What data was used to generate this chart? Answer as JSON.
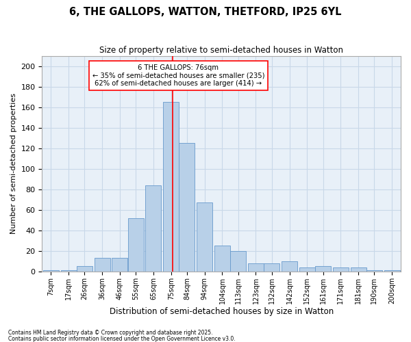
{
  "title": "6, THE GALLOPS, WATTON, THETFORD, IP25 6YL",
  "subtitle": "Size of property relative to semi-detached houses in Watton",
  "xlabel": "Distribution of semi-detached houses by size in Watton",
  "ylabel": "Number of semi-detached properties",
  "categories": [
    "7sqm",
    "17sqm",
    "26sqm",
    "36sqm",
    "46sqm",
    "55sqm",
    "65sqm",
    "75sqm",
    "84sqm",
    "94sqm",
    "104sqm",
    "113sqm",
    "123sqm",
    "132sqm",
    "142sqm",
    "152sqm",
    "161sqm",
    "171sqm",
    "181sqm",
    "190sqm",
    "200sqm"
  ],
  "bar_heights": [
    1,
    1,
    5,
    13,
    13,
    52,
    84,
    165,
    125,
    67,
    25,
    20,
    8,
    8,
    10,
    4,
    5,
    4,
    4,
    1,
    1
  ],
  "bar_color": "#b8d0e8",
  "bar_edge_color": "#6699cc",
  "grid_color": "#c8d8e8",
  "background_color": "#e8f0f8",
  "property_line_x": 76,
  "annotation_text": "6 THE GALLOPS: 76sqm\n← 35% of semi-detached houses are smaller (235)\n62% of semi-detached houses are larger (414) →",
  "footnote1": "Contains HM Land Registry data © Crown copyright and database right 2025.",
  "footnote2": "Contains public sector information licensed under the Open Government Licence v3.0.",
  "ylim": [
    0,
    210
  ],
  "yticks": [
    0,
    20,
    40,
    60,
    80,
    100,
    120,
    140,
    160,
    180,
    200
  ],
  "bin_centers": [
    7,
    17,
    26,
    36,
    46,
    55,
    65,
    75,
    84,
    94,
    104,
    113,
    123,
    132,
    142,
    152,
    161,
    171,
    181,
    190,
    200
  ],
  "bin_width": 9
}
